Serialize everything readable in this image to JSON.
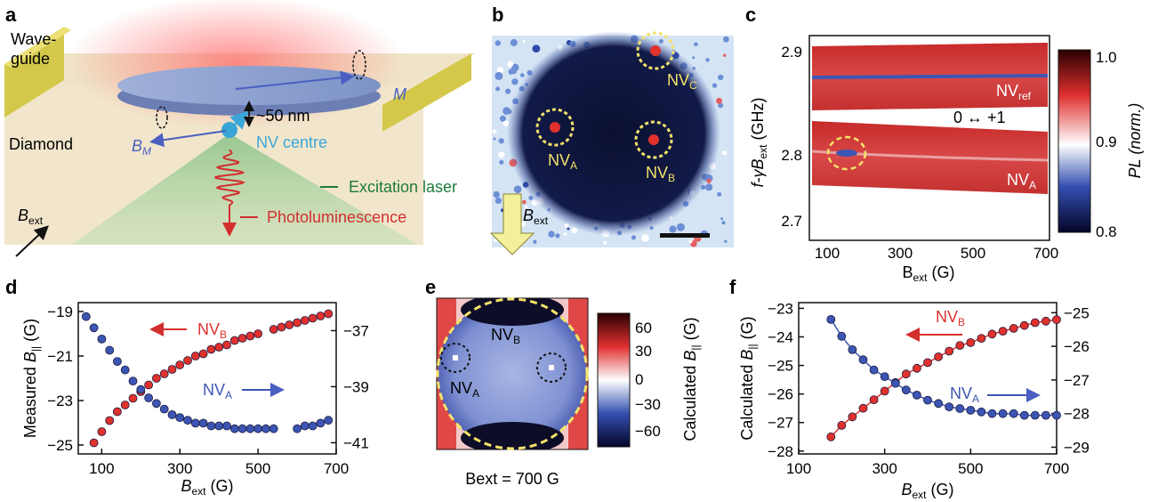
{
  "panel_labels": {
    "a": "a",
    "b": "b",
    "c": "c",
    "d": "d",
    "e": "e",
    "f": "f"
  },
  "panel_a": {
    "waveguide": "Wave-\nguide",
    "waveguide_l1": "Wave-",
    "waveguide_l2": "guide",
    "diamond": "Diamond",
    "m_label": "M",
    "bm_label": "B",
    "bm_sub": "M",
    "distance": "~50 nm",
    "nv_centre": "NV centre",
    "excitation": "Excitation laser",
    "photolum": "Photoluminescence",
    "bext": "B",
    "bext_sub": "ext",
    "colors": {
      "laser": "#1e7a3a",
      "pl": "#d32f2f",
      "nv": "#3aa6d8",
      "field": "#4a5fc1"
    }
  },
  "panel_b": {
    "nvA": "NV",
    "nvA_sub": "A",
    "nvB": "NV",
    "nvB_sub": "B",
    "nvC": "NV",
    "nvC_sub": "C",
    "bext": "B",
    "bext_sub": "ext"
  },
  "panel_c": {
    "ylabel": "f-γB",
    "ylabel_sub": "ext",
    "ylabel_unit": " (GHz)",
    "xlabel": "B",
    "xlabel_sub": "ext",
    "xlabel_unit": " (G)",
    "xticks": [
      "100",
      "300",
      "500",
      "700"
    ],
    "yticks": [
      "2.7",
      "2.8",
      "2.9"
    ],
    "nvref": "NV",
    "nvref_sub": "ref",
    "nvA": "NV",
    "nvA_sub": "A",
    "transition": "0 ↔ +1",
    "cbar_label": "PL (norm.)",
    "cbar_ticks": [
      "0.8",
      "0.9",
      "1.0"
    ]
  },
  "chart_data": [
    {
      "id": "d",
      "type": "scatter",
      "xlabel": "Bext (G)",
      "ylabel": "Measured B|| (G)",
      "xlim": [
        40,
        700
      ],
      "ylim_left": [
        -25.4,
        -18.6
      ],
      "ylim_right": [
        -41.4,
        -36.0
      ],
      "xticks": [
        "100",
        "300",
        "500",
        "700"
      ],
      "yticks_left": [
        "−19",
        "−21",
        "−23",
        "−25"
      ],
      "yticks_right": [
        "−37",
        "−39",
        "−41"
      ],
      "series": [
        {
          "name": "NVB",
          "axis": "left",
          "color": "#e0312d",
          "x": [
            80,
            100,
            120,
            140,
            160,
            180,
            200,
            220,
            240,
            260,
            280,
            300,
            320,
            340,
            360,
            380,
            400,
            420,
            440,
            460,
            480,
            500,
            540,
            560,
            580,
            600,
            620,
            640,
            660,
            680
          ],
          "y": [
            -24.9,
            -24.4,
            -23.9,
            -23.5,
            -23.2,
            -22.9,
            -22.6,
            -22.3,
            -22.0,
            -21.8,
            -21.6,
            -21.4,
            -21.2,
            -21.0,
            -20.9,
            -20.7,
            -20.6,
            -20.5,
            -20.3,
            -20.2,
            -20.1,
            -20.0,
            -19.8,
            -19.7,
            -19.6,
            -19.5,
            -19.4,
            -19.3,
            -19.2,
            -19.1
          ]
        },
        {
          "name": "NVA",
          "axis": "right",
          "color": "#3c55b3",
          "x": [
            60,
            80,
            100,
            120,
            140,
            160,
            180,
            200,
            220,
            240,
            260,
            280,
            300,
            320,
            340,
            360,
            380,
            400,
            420,
            440,
            460,
            480,
            500,
            520,
            540,
            600,
            620,
            640,
            660,
            680
          ],
          "y": [
            -36.5,
            -36.9,
            -37.3,
            -37.7,
            -38.1,
            -38.4,
            -38.8,
            -39.1,
            -39.4,
            -39.6,
            -39.8,
            -40.0,
            -40.1,
            -40.2,
            -40.3,
            -40.3,
            -40.4,
            -40.4,
            -40.4,
            -40.5,
            -40.5,
            -40.5,
            -40.5,
            -40.5,
            -40.5,
            -40.5,
            -40.4,
            -40.4,
            -40.3,
            -40.2
          ]
        }
      ],
      "annotations": {
        "nvB": "NV",
        "nvB_sub": "B",
        "nvA": "NV",
        "nvA_sub": "A"
      }
    },
    {
      "id": "e",
      "type": "heatmap",
      "title": "Bext = 700 G",
      "cbar_label": "Calculated B|| (G)",
      "cbar_ticks": [
        "60",
        "30",
        "0",
        "−30",
        "−60"
      ],
      "nvB": "NV",
      "nvB_sub": "B",
      "nvA": "NV",
      "nvA_sub": "A"
    },
    {
      "id": "f",
      "type": "line",
      "xlabel": "Bext (G)",
      "ylabel": "Calculated B|| (G)",
      "xlim": [
        100,
        700
      ],
      "ylim_left": [
        -28.1,
        -22.8
      ],
      "ylim_right": [
        -29.2,
        -24.7
      ],
      "xticks": [
        "100",
        "300",
        "500",
        "700"
      ],
      "yticks_left": [
        "−23",
        "−24",
        "−25",
        "−26",
        "−27",
        "−28"
      ],
      "yticks_right": [
        "−25",
        "−26",
        "−27",
        "−28",
        "−29"
      ],
      "series": [
        {
          "name": "NVB",
          "axis": "left",
          "color": "#e0312d",
          "x": [
            175,
            200,
            225,
            250,
            275,
            300,
            325,
            350,
            375,
            400,
            425,
            450,
            475,
            500,
            525,
            550,
            575,
            600,
            625,
            650,
            675,
            700
          ],
          "y": [
            -27.5,
            -27.1,
            -26.8,
            -26.5,
            -26.2,
            -25.9,
            -25.6,
            -25.3,
            -25.1,
            -24.9,
            -24.7,
            -24.5,
            -24.3,
            -24.2,
            -24.05,
            -23.9,
            -23.8,
            -23.7,
            -23.6,
            -23.5,
            -23.45,
            -23.4
          ]
        },
        {
          "name": "NVA",
          "axis": "right",
          "color": "#3c55b3",
          "x": [
            175,
            200,
            225,
            250,
            275,
            300,
            325,
            350,
            375,
            400,
            425,
            450,
            475,
            500,
            525,
            550,
            575,
            600,
            625,
            650,
            675,
            700
          ],
          "y": [
            -25.2,
            -25.7,
            -26.1,
            -26.4,
            -26.7,
            -26.9,
            -27.1,
            -27.3,
            -27.45,
            -27.6,
            -27.7,
            -27.8,
            -27.85,
            -27.9,
            -27.95,
            -28.0,
            -28.0,
            -28.0,
            -28.05,
            -28.05,
            -28.05,
            -28.05
          ]
        }
      ],
      "annotations": {
        "nvB": "NV",
        "nvB_sub": "B",
        "nvA": "NV",
        "nvA_sub": "A"
      }
    }
  ]
}
